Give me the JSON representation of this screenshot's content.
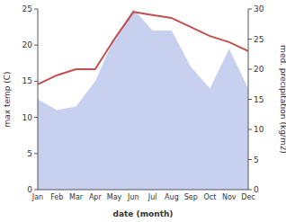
{
  "chart_data": {
    "type": "line",
    "x_label": "date (month)",
    "y_label": "max temp (C)",
    "y2_label": "med. precipitation (kg/m2)",
    "categories": [
      "Jan",
      "Feb",
      "Mar",
      "Apr",
      "May",
      "Jun",
      "Jul",
      "Aug",
      "Sep",
      "Oct",
      "Nov",
      "Dec"
    ],
    "series": [
      {
        "type": "area",
        "color": "#c8d0f0",
        "values": [
          12.5,
          11.0,
          11.5,
          15.0,
          21.0,
          25.0,
          22.0,
          22.0,
          17.0,
          14.0,
          19.5,
          14.0
        ]
      },
      {
        "type": "line",
        "axis": "y2",
        "color": "#c0504d",
        "values": [
          17.5,
          19.0,
          20.0,
          20.0,
          25.0,
          29.5,
          29.0,
          28.5,
          27.0,
          25.5,
          24.5,
          23.0
        ]
      }
    ],
    "ylim": [
      0,
      25
    ],
    "yticks": [
      0,
      5,
      10,
      15,
      20,
      25
    ],
    "y2lim": [
      0,
      30
    ],
    "y2ticks": [
      0,
      5,
      10,
      15,
      20,
      25,
      30
    ],
    "grid": false
  }
}
